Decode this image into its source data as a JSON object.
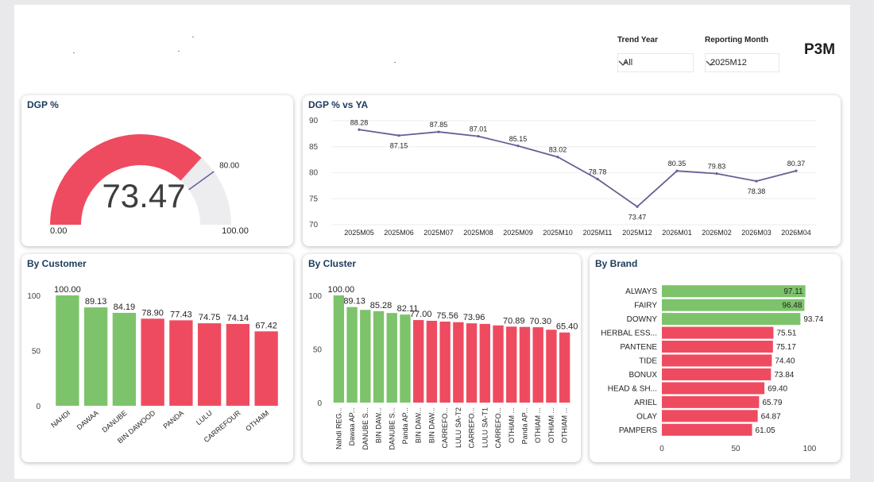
{
  "header": {
    "trend_year": {
      "label": "Trend Year",
      "value": "All"
    },
    "reporting_month": {
      "label": "Reporting Month",
      "value": "2025M12"
    },
    "period_badge": "P3M"
  },
  "titles": {
    "gauge": "DGP %",
    "trend": "DGP % vs YA",
    "customer": "By Customer",
    "cluster": "By Cluster",
    "brand": "By Brand"
  },
  "colors": {
    "green": "#7dc36b",
    "red": "#ef4b60",
    "track": "#ededf0",
    "line": "#6a5d96",
    "title": "#1b3a5c"
  },
  "chart_data": [
    {
      "type": "gauge",
      "title": "DGP %",
      "value": 73.47,
      "value_label": "73.47",
      "target": 80.0,
      "target_label": "80.00",
      "min": 0,
      "max": 100,
      "min_label": "0.00",
      "max_label": "100.00"
    },
    {
      "type": "line",
      "title": "DGP % vs YA",
      "categories": [
        "2025M05",
        "2025M06",
        "2025M07",
        "2025M08",
        "2025M09",
        "2025M10",
        "2025M11",
        "2025M12",
        "2026M01",
        "2026M02",
        "2026M03",
        "2026M04"
      ],
      "values": [
        88.28,
        87.15,
        87.85,
        87.01,
        85.15,
        83.02,
        78.78,
        73.47,
        80.35,
        79.83,
        78.38,
        80.37
      ],
      "labels": [
        "88.28",
        "87.15",
        "87.85",
        "87.01",
        "85.15",
        "83.02",
        "78.78",
        "73.47",
        "80.35",
        "79.83",
        "78.38",
        "80.37"
      ],
      "ylim": [
        70,
        90
      ],
      "yticks": [
        "70",
        "75",
        "80",
        "85",
        "90"
      ],
      "grid": true
    },
    {
      "type": "bar",
      "title": "By Customer",
      "categories": [
        "NAHDI",
        "DAWAA",
        "DANUBE",
        "BIN DAWOOD",
        "PANDA",
        "LULU",
        "CARREFOUR",
        "OTHAIM"
      ],
      "values": [
        100.0,
        89.13,
        84.19,
        78.9,
        77.43,
        74.75,
        74.14,
        67.42
      ],
      "labels": [
        "100.00",
        "89.13",
        "84.19",
        "78.90",
        "77.43",
        "74.75",
        "74.14",
        "67.42"
      ],
      "colors": [
        "green",
        "green",
        "green",
        "red",
        "red",
        "red",
        "red",
        "red"
      ],
      "ylim": [
        0,
        100
      ],
      "yticks": [
        "0",
        "50",
        "100"
      ]
    },
    {
      "type": "bar",
      "title": "By Cluster",
      "categories": [
        "Nahdi REG...",
        "Dawaa AP...",
        "DANUBE S...",
        "BIN DAW...",
        "DANUBE S...",
        "Panda AP...",
        "BIN DAW...",
        "BIN DAW...",
        "CARREFO...",
        "LULU SA-T2",
        "CARREFO...",
        "LULU SA-T1",
        "CARREFO...",
        "OTHIAM ...",
        "Panda AP...",
        "OTHIAM ...",
        "OTHIAM ...",
        "OTHIAM ..."
      ],
      "values": [
        100.0,
        89.13,
        86.5,
        85.28,
        83.6,
        82.11,
        77.0,
        76.3,
        75.56,
        75.0,
        73.96,
        73.4,
        72.0,
        70.89,
        70.6,
        70.3,
        68.0,
        65.4
      ],
      "labels": [
        "100.00",
        "89.13",
        "",
        "85.28",
        "",
        "82.11",
        "77.00",
        "",
        "75.56",
        "",
        "73.96",
        "",
        "",
        "70.89",
        "",
        "70.30",
        "",
        "65.40"
      ],
      "colors": [
        "green",
        "green",
        "green",
        "green",
        "green",
        "green",
        "red",
        "red",
        "red",
        "red",
        "red",
        "red",
        "red",
        "red",
        "red",
        "red",
        "red",
        "red"
      ],
      "ylim": [
        0,
        100
      ],
      "yticks": [
        "0",
        "50",
        "100"
      ]
    },
    {
      "type": "bar",
      "orientation": "horizontal",
      "title": "By Brand",
      "categories": [
        "ALWAYS",
        "FAIRY",
        "DOWNY",
        "HERBAL ESS...",
        "PANTENE",
        "TIDE",
        "BONUX",
        "HEAD & SH...",
        "ARIEL",
        "OLAY",
        "PAMPERS"
      ],
      "values": [
        97.11,
        96.48,
        93.74,
        75.51,
        75.17,
        74.4,
        73.84,
        69.4,
        65.79,
        64.87,
        61.05
      ],
      "labels": [
        "97.11",
        "96.48",
        "93.74",
        "75.51",
        "75.17",
        "74.40",
        "73.84",
        "69.40",
        "65.79",
        "64.87",
        "61.05"
      ],
      "colors": [
        "green",
        "green",
        "green",
        "red",
        "red",
        "red",
        "red",
        "red",
        "red",
        "red",
        "red"
      ],
      "xlim": [
        0,
        100
      ],
      "xticks": [
        "0",
        "50",
        "100"
      ]
    }
  ]
}
